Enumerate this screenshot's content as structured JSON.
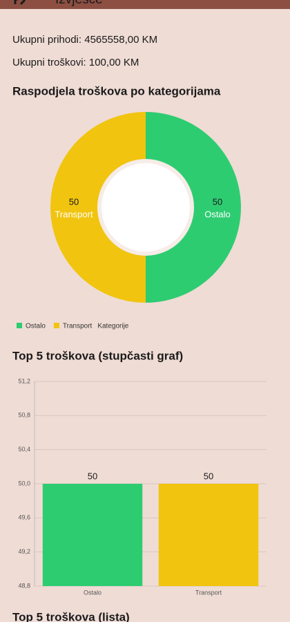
{
  "header": {
    "title": "Izvješće"
  },
  "summary": {
    "income": "Ukupni prihodi: 4565558,00 KM",
    "expenses": "Ukupni troškovi: 100,00 KM"
  },
  "chart_data": [
    {
      "type": "pie",
      "title": "Raspodjela troškova po kategorijama",
      "categories": [
        "Ostalo",
        "Transport"
      ],
      "values": [
        50,
        50
      ],
      "colors": [
        "#2ecc71",
        "#f1c40f"
      ],
      "dataset_label": "Kategorije"
    },
    {
      "type": "bar",
      "title": "Top 5 troškova (stupčasti graf)",
      "categories": [
        "Ostalo",
        "Transport"
      ],
      "values": [
        50,
        50
      ],
      "colors": [
        "#2ecc71",
        "#f1c40f"
      ],
      "ylim": [
        48.8,
        51.2
      ],
      "yticks": [
        {
          "value": 48.8,
          "label": "48,8"
        },
        {
          "value": 49.2,
          "label": "49,2"
        },
        {
          "value": 49.6,
          "label": "49,6"
        },
        {
          "value": 50.0,
          "label": "50,0"
        },
        {
          "value": 50.4,
          "label": "50,4"
        },
        {
          "value": 50.8,
          "label": "50,8"
        },
        {
          "value": 51.2,
          "label": "51,2"
        }
      ],
      "grid": true
    }
  ],
  "list_title": "Top 5 troškova (lista)"
}
